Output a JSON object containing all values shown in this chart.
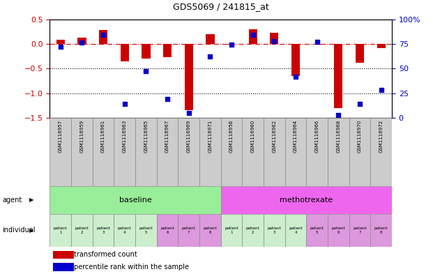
{
  "title": "GDS5069 / 241815_at",
  "sample_ids": [
    "GSM1116957",
    "GSM1116959",
    "GSM1116961",
    "GSM1116963",
    "GSM1116965",
    "GSM1116967",
    "GSM1116969",
    "GSM1116971",
    "GSM1116958",
    "GSM1116960",
    "GSM1116962",
    "GSM1116964",
    "GSM1116966",
    "GSM1116968",
    "GSM1116970",
    "GSM1116972"
  ],
  "red_bars": [
    0.09,
    0.12,
    0.28,
    -0.35,
    -0.3,
    -0.27,
    -1.35,
    0.2,
    -0.02,
    0.3,
    0.22,
    -0.65,
    -0.02,
    -1.3,
    -0.38,
    -0.08
  ],
  "blue_dots": [
    72,
    76,
    84,
    14,
    47,
    19,
    5,
    62,
    74,
    84,
    78,
    42,
    77,
    3,
    14,
    28
  ],
  "left_ylim": [
    -1.5,
    0.5
  ],
  "right_ylim": [
    0,
    100
  ],
  "left_yticks": [
    -1.5,
    -1.0,
    -0.5,
    0.0,
    0.5
  ],
  "right_yticks": [
    0,
    25,
    50,
    75,
    100
  ],
  "right_yticklabels": [
    "0",
    "25",
    "50",
    "75",
    "100%"
  ],
  "baseline_color": "#99EE99",
  "methotrexate_color": "#EE66EE",
  "patient_colors": [
    "#cceecc",
    "#cceecc",
    "#cceecc",
    "#cceecc",
    "#cceecc",
    "#dd99dd",
    "#dd99dd",
    "#dd99dd",
    "#cceecc",
    "#cceecc",
    "#cceecc",
    "#cceecc",
    "#dd99dd",
    "#dd99dd",
    "#dd99dd",
    "#dd99dd"
  ],
  "agent_label": "agent",
  "individual_label": "individual",
  "legend_red": "transformed count",
  "legend_blue": "percentile rank within the sample",
  "bar_color": "#CC0000",
  "dot_color": "#0000CC",
  "dashed_line_color": "#CC0000",
  "dotted_line_color": "#000000",
  "grey_box_color": "#cccccc"
}
